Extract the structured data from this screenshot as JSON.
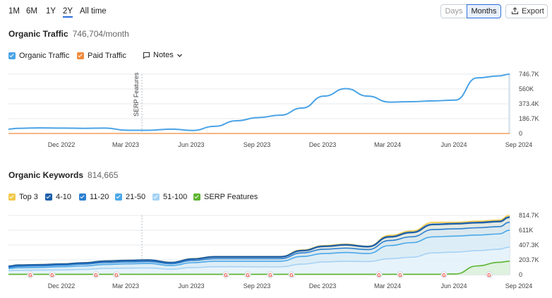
{
  "range_tabs": [
    {
      "label": "1M"
    },
    {
      "label": "6M"
    },
    {
      "label": "1Y"
    },
    {
      "label": "2Y",
      "active": true
    },
    {
      "label": "All time"
    }
  ],
  "toggle": {
    "days": "Days",
    "months": "Months",
    "selected": "Months"
  },
  "export_label": "Export",
  "traffic": {
    "title": "Organic Traffic",
    "value": "746,704/month",
    "legend": [
      {
        "label": "Organic Traffic",
        "color": "#4aa3e6"
      },
      {
        "label": "Paid Traffic",
        "color": "#f08a3c"
      }
    ],
    "notes_label": "Notes",
    "annotation": "SERP Features"
  },
  "keywords": {
    "title": "Organic Keywords",
    "value": "814,665",
    "legend": [
      {
        "label": "Top 3",
        "color": "#f2c94c"
      },
      {
        "label": "4-10",
        "color": "#1d5fa8"
      },
      {
        "label": "11-20",
        "color": "#2b7fd0"
      },
      {
        "label": "21-50",
        "color": "#4aa8ea"
      },
      {
        "label": "51-100",
        "color": "#a6d3f5"
      },
      {
        "label": "SERP Features",
        "color": "#5cb531"
      }
    ]
  },
  "chart_data": [
    {
      "type": "line",
      "x_ticks": [
        "Dec 2022",
        "Mar 2023",
        "Jun 2023",
        "Sep 2023",
        "Dec 2023",
        "Mar 2024",
        "Jun 2024",
        "Sep 2024"
      ],
      "y_ticks": [
        "746.7K",
        "560K",
        "373.4K",
        "186.7K",
        "0"
      ],
      "ylim": [
        0,
        746700
      ],
      "x": [
        "2022-09",
        "2022-10",
        "2022-11",
        "2022-12",
        "2023-01",
        "2023-02",
        "2023-03",
        "2023-04",
        "2023-05",
        "2023-06",
        "2023-07",
        "2023-08",
        "2023-09",
        "2023-10",
        "2023-11",
        "2023-12",
        "2024-01",
        "2024-02",
        "2024-03",
        "2024-04",
        "2024-05",
        "2024-06",
        "2024-07",
        "2024-08",
        "2024-09"
      ],
      "series": [
        {
          "name": "Organic Traffic",
          "values": [
            55000,
            65000,
            70000,
            68000,
            65000,
            68000,
            40000,
            40000,
            55000,
            38000,
            90000,
            160000,
            200000,
            230000,
            320000,
            470000,
            565000,
            470000,
            395000,
            400000,
            410000,
            420000,
            700000,
            725000,
            746704
          ]
        },
        {
          "name": "Paid Traffic",
          "values": [
            0,
            0,
            0,
            0,
            0,
            0,
            0,
            0,
            0,
            0,
            0,
            0,
            0,
            0,
            0,
            0,
            0,
            0,
            0,
            0,
            0,
            0,
            0,
            0,
            0
          ]
        }
      ],
      "grid": true
    },
    {
      "type": "area",
      "x_ticks": [
        "Dec 2022",
        "Mar 2023",
        "Jun 2023",
        "Sep 2023",
        "Dec 2023",
        "Mar 2024",
        "Jun 2024",
        "Sep 2024"
      ],
      "y_ticks": [
        "814.7K",
        "611K",
        "407.3K",
        "203.7K",
        "0"
      ],
      "ylim": [
        0,
        814700
      ],
      "x": [
        "2022-09",
        "2022-10",
        "2022-11",
        "2022-12",
        "2023-01",
        "2023-02",
        "2023-03",
        "2023-04",
        "2023-05",
        "2023-06",
        "2023-07",
        "2023-08",
        "2023-09",
        "2023-10",
        "2023-11",
        "2023-12",
        "2024-01",
        "2024-02",
        "2024-03",
        "2024-04",
        "2024-05",
        "2024-06",
        "2024-07",
        "2024-08",
        "2024-09"
      ],
      "series": [
        {
          "name": "Top 3",
          "values": [
            120000,
            135000,
            140000,
            150000,
            165000,
            190000,
            200000,
            205000,
            170000,
            220000,
            250000,
            250000,
            250000,
            250000,
            340000,
            400000,
            420000,
            390000,
            540000,
            600000,
            720000,
            720000,
            735000,
            750000,
            814665
          ]
        },
        {
          "name": "4-10",
          "values": [
            115000,
            130000,
            135000,
            145000,
            160000,
            185000,
            195000,
            200000,
            165000,
            215000,
            245000,
            245000,
            245000,
            245000,
            330000,
            390000,
            410000,
            385000,
            520000,
            580000,
            690000,
            700000,
            715000,
            730000,
            790000
          ]
        },
        {
          "name": "11-20",
          "values": [
            100000,
            115000,
            120000,
            130000,
            145000,
            165000,
            175000,
            180000,
            150000,
            195000,
            220000,
            220000,
            220000,
            220000,
            300000,
            350000,
            365000,
            345000,
            470000,
            520000,
            620000,
            630000,
            645000,
            660000,
            720000
          ]
        },
        {
          "name": "21-50",
          "values": [
            85000,
            95000,
            100000,
            110000,
            120000,
            140000,
            150000,
            155000,
            125000,
            165000,
            185000,
            185000,
            185000,
            185000,
            250000,
            290000,
            305000,
            290000,
            400000,
            440000,
            520000,
            530000,
            545000,
            560000,
            610000
          ]
        },
        {
          "name": "51-100",
          "values": [
            55000,
            60000,
            62000,
            65000,
            72000,
            85000,
            90000,
            92000,
            75000,
            98000,
            110000,
            110000,
            108000,
            108000,
            145000,
            175000,
            185000,
            180000,
            220000,
            240000,
            300000,
            310000,
            330000,
            350000,
            380000
          ]
        },
        {
          "name": "SERP Features",
          "values": [
            5000,
            5000,
            5000,
            5000,
            5000,
            5000,
            5000,
            5000,
            5000,
            5000,
            5000,
            5000,
            5000,
            5000,
            5000,
            5000,
            5000,
            5000,
            5000,
            5000,
            5000,
            10000,
            120000,
            170000,
            185000
          ]
        }
      ],
      "grid": true
    }
  ]
}
